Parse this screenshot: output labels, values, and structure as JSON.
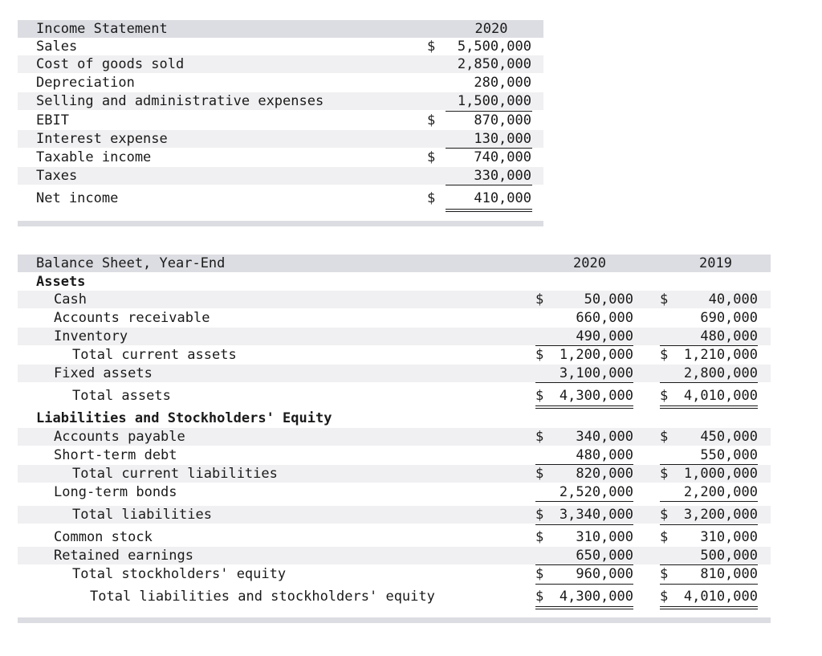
{
  "income_statement": {
    "title": "Income Statement",
    "year": "2020",
    "rows": [
      {
        "label": "Sales",
        "dollar": "$",
        "value": "5,500,000"
      },
      {
        "label": "Cost of goods sold",
        "dollar": "",
        "value": "2,850,000"
      },
      {
        "label": "Depreciation",
        "dollar": "",
        "value": "280,000"
      },
      {
        "label": "Selling and administrative expenses",
        "dollar": "",
        "value": "1,500,000"
      },
      {
        "label": "EBIT",
        "dollar": "$",
        "value": "870,000"
      },
      {
        "label": "Interest expense",
        "dollar": "",
        "value": "130,000"
      },
      {
        "label": "Taxable income",
        "dollar": "$",
        "value": "740,000"
      },
      {
        "label": "Taxes",
        "dollar": "",
        "value": "330,000"
      },
      {
        "label": "Net income",
        "dollar": "$",
        "value": "410,000"
      }
    ]
  },
  "balance_sheet": {
    "title": "Balance Sheet, Year-End",
    "years": [
      "2020",
      "2019"
    ],
    "assets_heading": "Assets",
    "liabilities_heading": "Liabilities and Stockholders' Equity",
    "rows": {
      "cash": {
        "label": "Cash",
        "d2020": "$",
        "v2020": "50,000",
        "d2019": "$",
        "v2019": "40,000"
      },
      "accounts_receivable": {
        "label": "Accounts receivable",
        "d2020": "",
        "v2020": "660,000",
        "d2019": "",
        "v2019": "690,000"
      },
      "inventory": {
        "label": "Inventory",
        "d2020": "",
        "v2020": "490,000",
        "d2019": "",
        "v2019": "480,000"
      },
      "total_current_assets": {
        "label": "Total current assets",
        "d2020": "$",
        "v2020": "1,200,000",
        "d2019": "$",
        "v2019": "1,210,000"
      },
      "fixed_assets": {
        "label": "Fixed assets",
        "d2020": "",
        "v2020": "3,100,000",
        "d2019": "",
        "v2019": "2,800,000"
      },
      "total_assets": {
        "label": "Total assets",
        "d2020": "$",
        "v2020": "4,300,000",
        "d2019": "$",
        "v2019": "4,010,000"
      },
      "accounts_payable": {
        "label": "Accounts payable",
        "d2020": "$",
        "v2020": "340,000",
        "d2019": "$",
        "v2019": "450,000"
      },
      "short_term_debt": {
        "label": "Short-term debt",
        "d2020": "",
        "v2020": "480,000",
        "d2019": "",
        "v2019": "550,000"
      },
      "total_current_liabilities": {
        "label": "Total current liabilities",
        "d2020": "$",
        "v2020": "820,000",
        "d2019": "$",
        "v2019": "1,000,000"
      },
      "long_term_bonds": {
        "label": "Long-term bonds",
        "d2020": "",
        "v2020": "2,520,000",
        "d2019": "",
        "v2019": "2,200,000"
      },
      "total_liabilities": {
        "label": "Total liabilities",
        "d2020": "$",
        "v2020": "3,340,000",
        "d2019": "$",
        "v2019": "3,200,000"
      },
      "common_stock": {
        "label": "Common stock",
        "d2020": "$",
        "v2020": "310,000",
        "d2019": "$",
        "v2019": "310,000"
      },
      "retained_earnings": {
        "label": "Retained earnings",
        "d2020": "",
        "v2020": "650,000",
        "d2019": "",
        "v2019": "500,000"
      },
      "total_equity": {
        "label": "Total stockholders' equity",
        "d2020": "$",
        "v2020": "960,000",
        "d2019": "$",
        "v2019": "810,000"
      },
      "total_liabilities_equity": {
        "label": "Total liabilities and stockholders' equity",
        "d2020": "$",
        "v2020": "4,300,000",
        "d2019": "$",
        "v2019": "4,010,000"
      }
    }
  }
}
